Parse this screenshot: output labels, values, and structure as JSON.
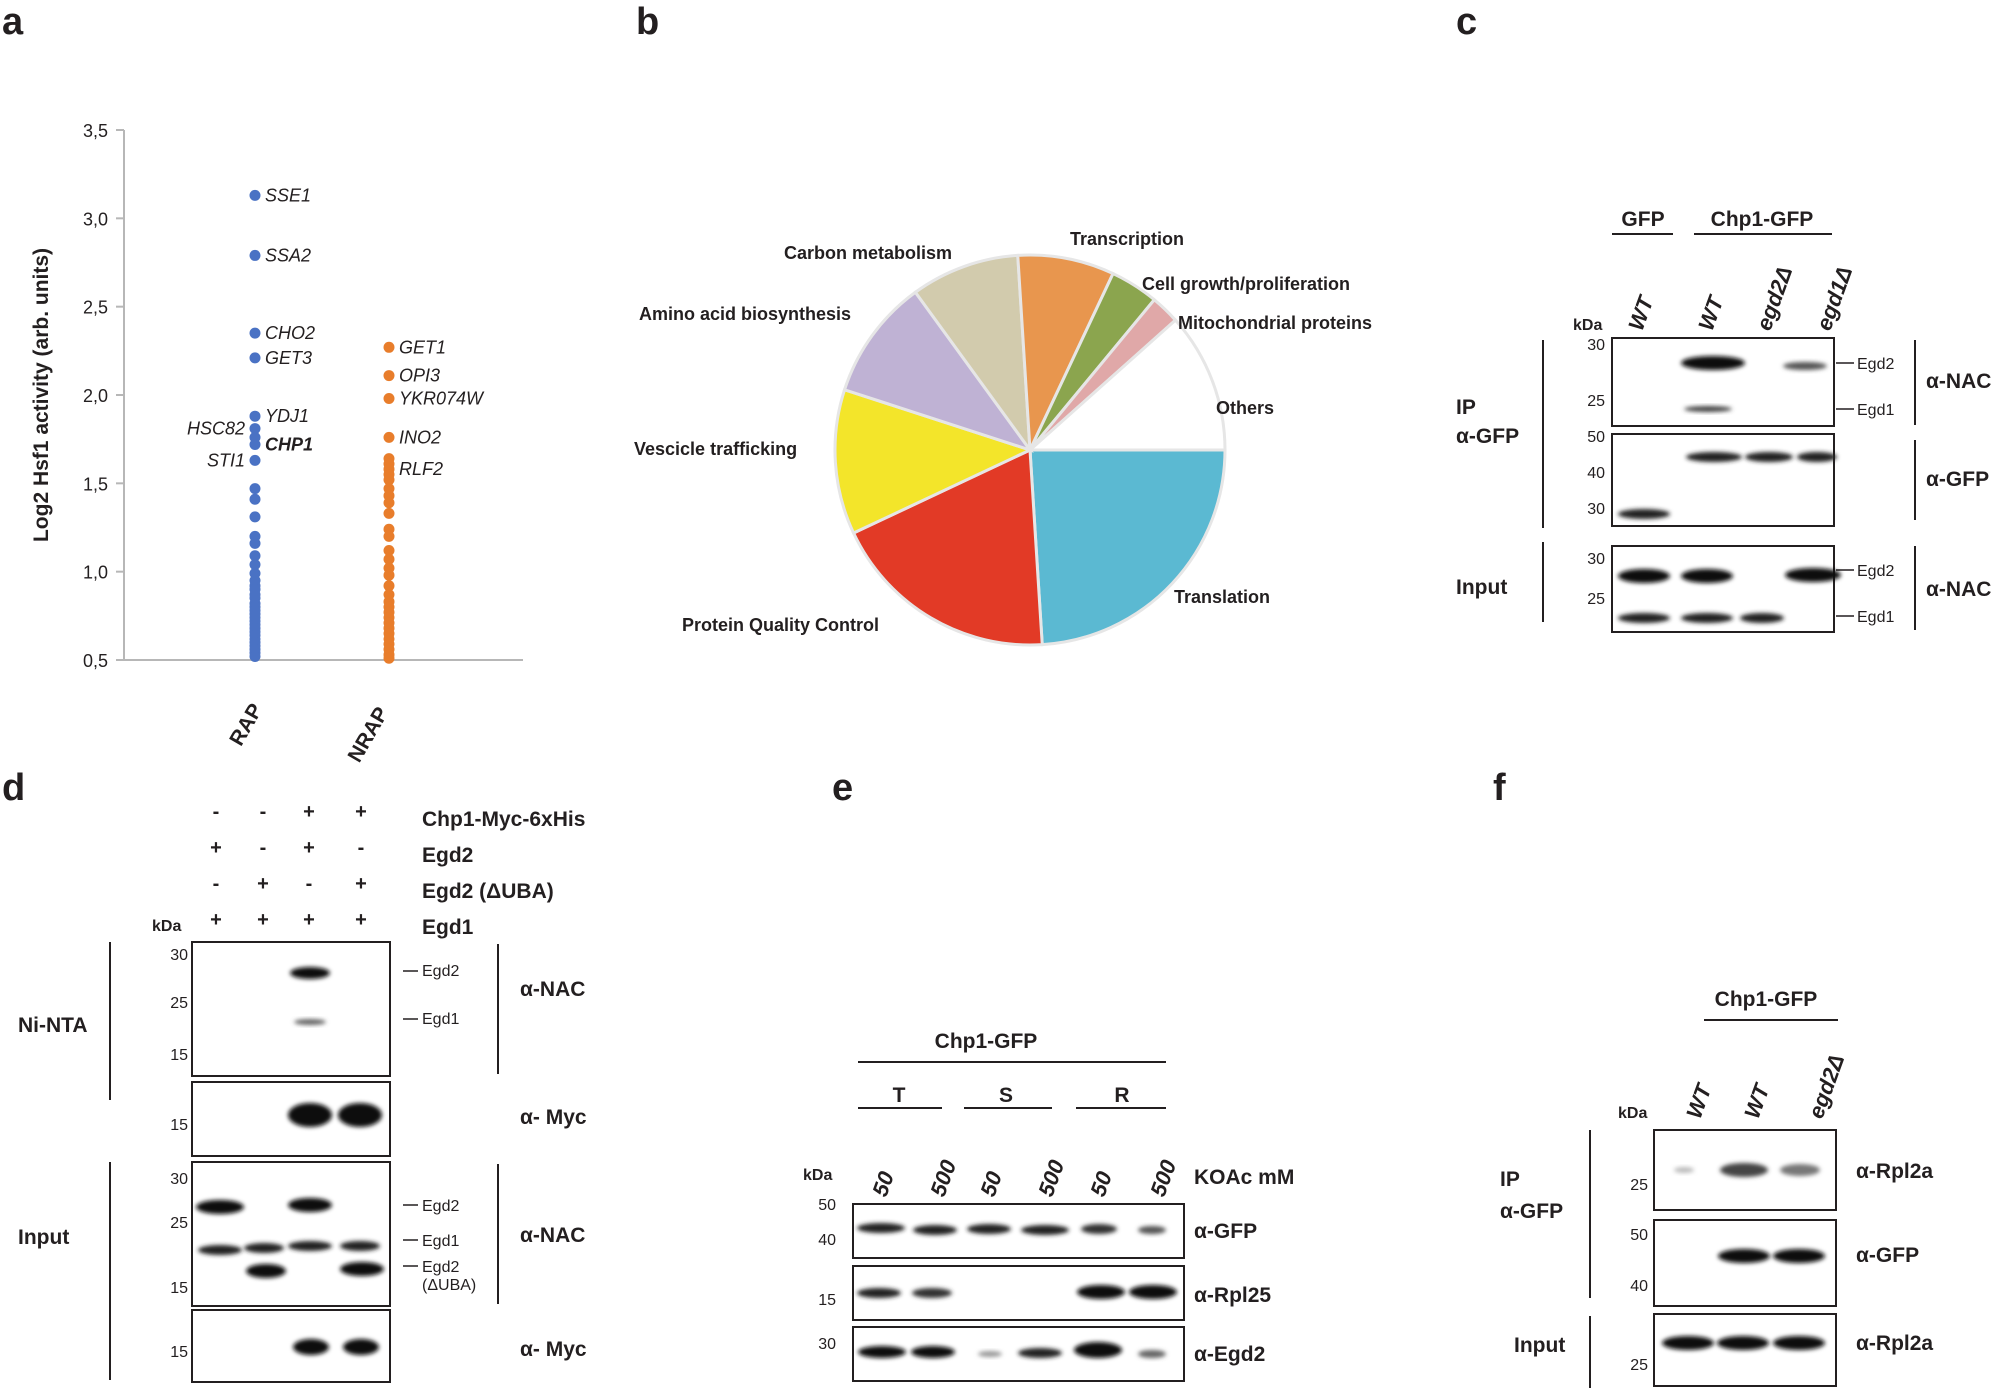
{
  "panel_labels": {
    "a": "a",
    "b": "b",
    "c": "c",
    "d": "d",
    "e": "e",
    "f": "f"
  },
  "chart_data": [
    {
      "type": "scatter",
      "ylabel": "Log2 Hsf1 activity (arb. units)",
      "ylim": [
        0.5,
        3.5
      ],
      "yticks": [
        "0,5",
        "1,0",
        "1,5",
        "2,0",
        "2,5",
        "3,0",
        "3,5"
      ],
      "ytick_values": [
        0.5,
        1.0,
        1.5,
        2.0,
        2.5,
        3.0,
        3.5
      ],
      "categories": [
        "RAP",
        "NRAP"
      ],
      "colors": {
        "RAP": "#4a72c4",
        "NRAP": "#e87d2b"
      },
      "series": [
        {
          "name": "RAP",
          "values": [
            3.13,
            2.79,
            2.35,
            2.21,
            1.88,
            1.81,
            1.76,
            1.72,
            1.63,
            1.47,
            1.41,
            1.31,
            1.2,
            1.16,
            1.09,
            1.04,
            0.99,
            0.95,
            0.92,
            0.9,
            0.87,
            0.85,
            0.82,
            0.8,
            0.78,
            0.76,
            0.74,
            0.72,
            0.7,
            0.68,
            0.66,
            0.64,
            0.62,
            0.6,
            0.58,
            0.56,
            0.54,
            0.52
          ]
        },
        {
          "name": "NRAP",
          "values": [
            2.27,
            2.11,
            1.98,
            1.76,
            1.64,
            1.61,
            1.58,
            1.55,
            1.52,
            1.47,
            1.43,
            1.39,
            1.33,
            1.24,
            1.2,
            1.12,
            1.07,
            1.02,
            0.98,
            0.92,
            0.87,
            0.83,
            0.8,
            0.77,
            0.74,
            0.71,
            0.68,
            0.65,
            0.62,
            0.59,
            0.56,
            0.53,
            0.51
          ]
        }
      ],
      "annotations": [
        {
          "text": "SSE1",
          "y": 3.13,
          "series": "RAP",
          "side": "right",
          "bold": false
        },
        {
          "text": "SSA2",
          "y": 2.79,
          "series": "RAP",
          "side": "right",
          "bold": false
        },
        {
          "text": "CHO2",
          "y": 2.35,
          "series": "RAP",
          "side": "right",
          "bold": false
        },
        {
          "text": "GET3",
          "y": 2.21,
          "series": "RAP",
          "side": "right",
          "bold": false
        },
        {
          "text": "YDJ1",
          "y": 1.88,
          "series": "RAP",
          "side": "right",
          "bold": false
        },
        {
          "text": "CHP1",
          "y": 1.72,
          "series": "RAP",
          "side": "right",
          "bold": true
        },
        {
          "text": "HSC82",
          "y": 1.81,
          "series": "RAP",
          "side": "left",
          "bold": false
        },
        {
          "text": "STI1",
          "y": 1.63,
          "series": "RAP",
          "side": "left",
          "bold": false
        },
        {
          "text": "GET1",
          "y": 2.27,
          "series": "NRAP",
          "side": "right",
          "bold": false
        },
        {
          "text": "OPI3",
          "y": 2.11,
          "series": "NRAP",
          "side": "right",
          "bold": false
        },
        {
          "text": "YKR074W",
          "y": 1.98,
          "series": "NRAP",
          "side": "right",
          "bold": false
        },
        {
          "text": "INO2",
          "y": 1.76,
          "series": "NRAP",
          "side": "right",
          "bold": false
        },
        {
          "text": "RLF2",
          "y": 1.58,
          "series": "NRAP",
          "side": "right",
          "bold": false
        }
      ]
    },
    {
      "type": "pie",
      "slices": [
        {
          "label": "Translation",
          "value": 24,
          "color": "#5bb9d2"
        },
        {
          "label": "Protein Quality Control",
          "value": 19,
          "color": "#e23a26"
        },
        {
          "label": "Vescicle trafficking",
          "value": 12,
          "color": "#f3e52a"
        },
        {
          "label": "Amino acid biosynthesis",
          "value": 10,
          "color": "#bfb2d4"
        },
        {
          "label": "Carbon metabolism",
          "value": 9,
          "color": "#d2cbad"
        },
        {
          "label": "Transcription",
          "value": 8,
          "color": "#e8964e"
        },
        {
          "label": "Cell growth/proliferation",
          "value": 4,
          "color": "#8ba54e"
        },
        {
          "label": "Mitochondrial proteins",
          "value": 2.4,
          "color": "#e0a8a8"
        },
        {
          "label": "Others",
          "value": 11.6,
          "color": "#ffffff"
        }
      ]
    }
  ],
  "panel_c": {
    "group_gfp": "GFP",
    "group_chp1": "Chp1-GFP",
    "kda": "kDa",
    "lanes": [
      "WT",
      "WT",
      "egd2Δ",
      "egd1Δ"
    ],
    "ip": "IP",
    "ip_ab": "α-GFP",
    "input": "Input",
    "blots": [
      {
        "mw": [
          "30",
          "25"
        ],
        "bands": [
          "Egd2",
          "Egd1"
        ],
        "antibody": "α-NAC"
      },
      {
        "mw": [
          "50",
          "40",
          "30"
        ],
        "bands": [],
        "antibody": "α-GFP"
      },
      {
        "mw": [
          "30",
          "25"
        ],
        "bands": [
          "Egd2",
          "Egd1"
        ],
        "antibody": "α-NAC"
      }
    ]
  },
  "panel_d": {
    "rows": [
      {
        "label": "Chp1-Myc-6xHis",
        "signs": [
          "-",
          "-",
          "+",
          "+"
        ]
      },
      {
        "label": "Egd2",
        "signs": [
          "+",
          "-",
          "+",
          "-"
        ]
      },
      {
        "label": "Egd2 (ΔUBA)",
        "signs": [
          "-",
          "+",
          "-",
          "+"
        ]
      },
      {
        "label": "Egd1",
        "signs": [
          "+",
          "+",
          "+",
          "+"
        ]
      }
    ],
    "kda": "kDa",
    "ni_nta": "Ni-NTA",
    "input": "Input",
    "blots": [
      {
        "mw": [
          "30",
          "25",
          "15"
        ],
        "bands": [
          "Egd2",
          "Egd1"
        ],
        "antibody": "α-NAC"
      },
      {
        "mw": [
          "15"
        ],
        "bands": [],
        "antibody": "α- Myc"
      },
      {
        "mw": [
          "30",
          "25",
          "15"
        ],
        "bands": [
          "Egd2",
          "Egd1",
          "Egd2"
        ],
        "band_note": "(ΔUBA)",
        "antibody": "α-NAC"
      },
      {
        "mw": [
          "15"
        ],
        "bands": [],
        "antibody": "α- Myc"
      }
    ]
  },
  "panel_e": {
    "title": "Chp1-GFP",
    "fractions": [
      "T",
      "S",
      "R"
    ],
    "lanes": [
      "50",
      "500",
      "50",
      "500",
      "50",
      "500"
    ],
    "koac": "KOAc mM",
    "kda": "kDa",
    "blots": [
      {
        "mw": [
          "50",
          "40"
        ],
        "antibody": "α-GFP"
      },
      {
        "mw": [
          "15"
        ],
        "antibody": "α-Rpl25"
      },
      {
        "mw": [
          "30"
        ],
        "antibody": "α-Egd2"
      }
    ]
  },
  "panel_f": {
    "title": "Chp1-GFP",
    "kda": "kDa",
    "lanes": [
      "WT",
      "WT",
      "egd2Δ"
    ],
    "ip": "IP",
    "ip_ab": "α-GFP",
    "input": "Input",
    "blots": [
      {
        "mw": [
          "25"
        ],
        "antibody": "α-Rpl2a"
      },
      {
        "mw": [
          "50",
          "40"
        ],
        "antibody": "α-GFP"
      },
      {
        "mw": [
          "25"
        ],
        "antibody": "α-Rpl2a"
      }
    ]
  }
}
